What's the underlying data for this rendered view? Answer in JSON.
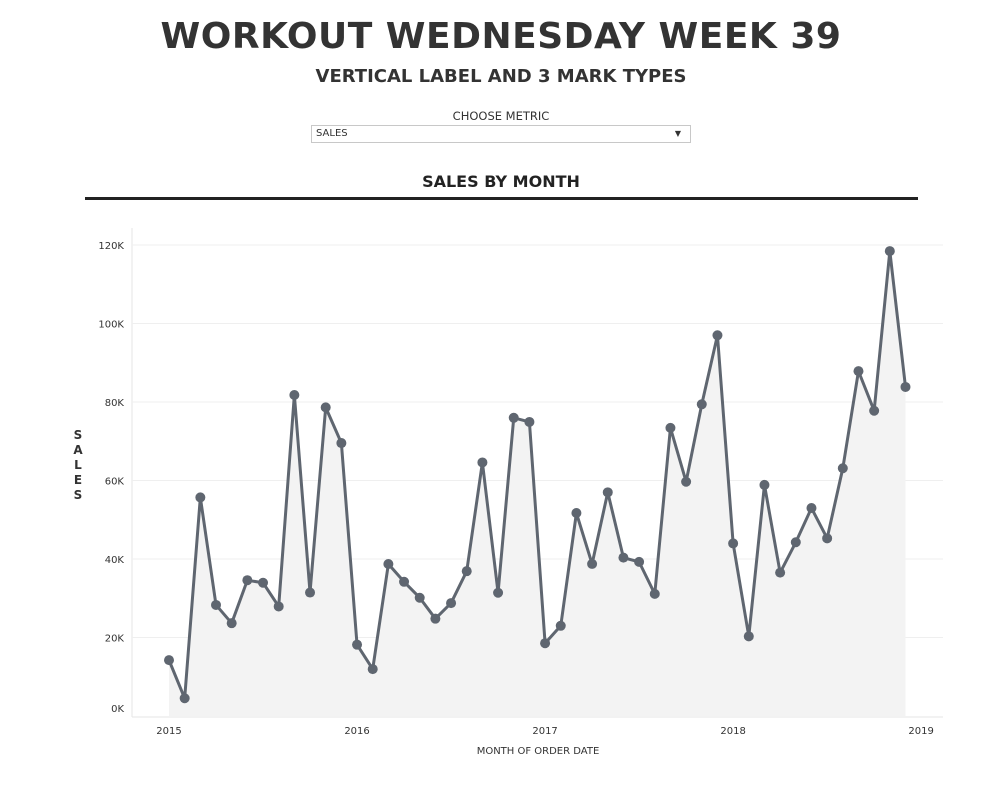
{
  "header": {
    "title": "WORKOUT WEDNESDAY WEEK 39",
    "subtitle": "VERTICAL LABEL AND 3 MARK TYPES"
  },
  "metric_selector": {
    "label": "CHOOSE METRIC",
    "selected": "SALES",
    "arrow_icon": "▼"
  },
  "chart_data": {
    "type": "line",
    "mark_types": [
      "line",
      "circle",
      "area"
    ],
    "title": "SALES BY MONTH",
    "xlabel": "MONTH OF ORDER DATE",
    "ylabel": "SALES",
    "ylabel_letters": [
      "S",
      "A",
      "L",
      "E",
      "S"
    ],
    "ylim": [
      0,
      120000
    ],
    "yticks": [
      0,
      20000,
      40000,
      60000,
      80000,
      100000,
      120000
    ],
    "ytick_labels": [
      "0K",
      "20K",
      "40K",
      "60K",
      "80K",
      "100K",
      "120K"
    ],
    "xtick_labels": [
      "2015",
      "2016",
      "2017",
      "2018",
      "2019"
    ],
    "grid": true,
    "line_color": "#5f6670",
    "area_color": "#f3f3f3",
    "start": "2015-01",
    "values": [
      14237,
      4520,
      55691,
      28295,
      23648,
      34595,
      33946,
      27909,
      81777,
      31453,
      78629,
      69546,
      18174,
      11951,
      38726,
      34195,
      30131,
      24797,
      28765,
      36898,
      64596,
      31404,
      75973,
      74920,
      18542,
      22979,
      51716,
      38750,
      56988,
      40345,
      39262,
      31115,
      73410,
      59688,
      79412,
      96999,
      43971,
      20301,
      58872,
      36522,
      44261,
      52982,
      45264,
      63121,
      87867,
      77777,
      118448,
      83829
    ]
  }
}
